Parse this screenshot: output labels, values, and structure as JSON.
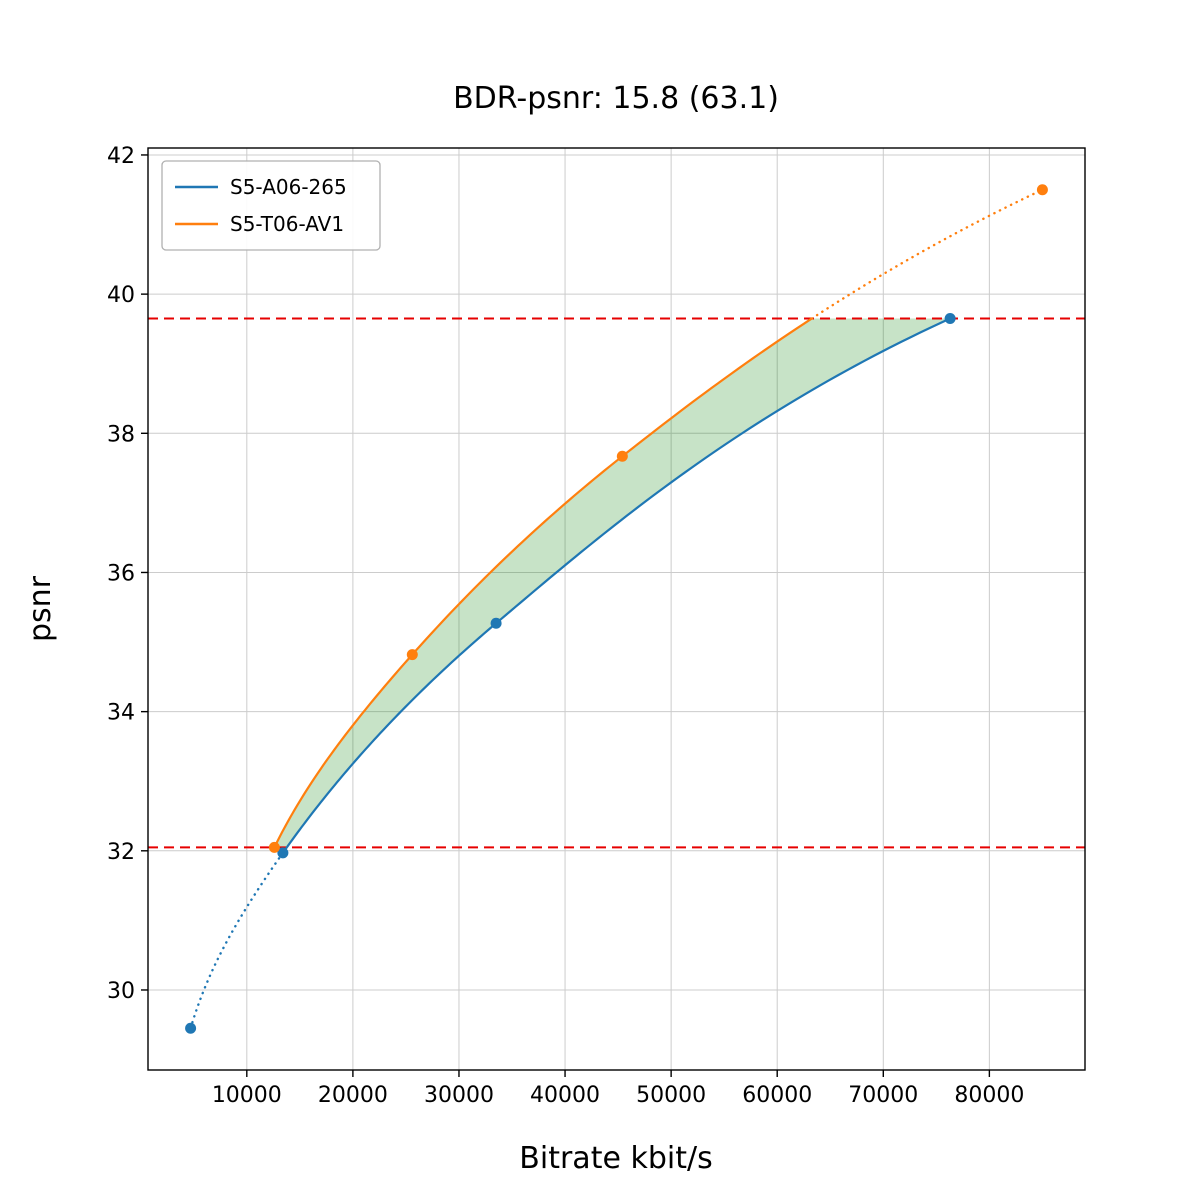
{
  "chart_data": {
    "type": "line",
    "title": "BDR-psnr: 15.8 (63.1)",
    "xlabel": "Bitrate kbit/s",
    "ylabel": "psnr",
    "xlim": [
      685,
      89015
    ],
    "ylim": [
      28.85,
      42.1
    ],
    "xticks": [
      10000,
      20000,
      30000,
      40000,
      50000,
      60000,
      70000,
      80000
    ],
    "yticks": [
      30,
      32,
      34,
      36,
      38,
      40,
      42
    ],
    "grid": true,
    "grid_color": "#cccccc",
    "legend": {
      "position": "upper left"
    },
    "series": [
      {
        "name": "S5-A06-265",
        "color": "#1f77b4",
        "points": [
          [
            4700,
            29.45
          ],
          [
            13400,
            31.97
          ],
          [
            33500,
            35.27
          ],
          [
            76300,
            39.65
          ]
        ],
        "split": {
          "type": "dotted_before_index",
          "index": 1
        }
      },
      {
        "name": "S5-T06-AV1",
        "color": "#ff7f0e",
        "points": [
          [
            12600,
            32.05
          ],
          [
            25600,
            34.82
          ],
          [
            45400,
            37.67
          ],
          [
            85000,
            41.5
          ]
        ],
        "split": {
          "type": "dotted_after_psnr",
          "psnr": 39.65
        }
      }
    ],
    "overlap": {
      "color": "#e60000",
      "y_low": 32.05,
      "y_high": 39.65,
      "dash": "10 6"
    },
    "fill_between": {
      "color": "rgba(0,128,0,0.22)"
    }
  }
}
